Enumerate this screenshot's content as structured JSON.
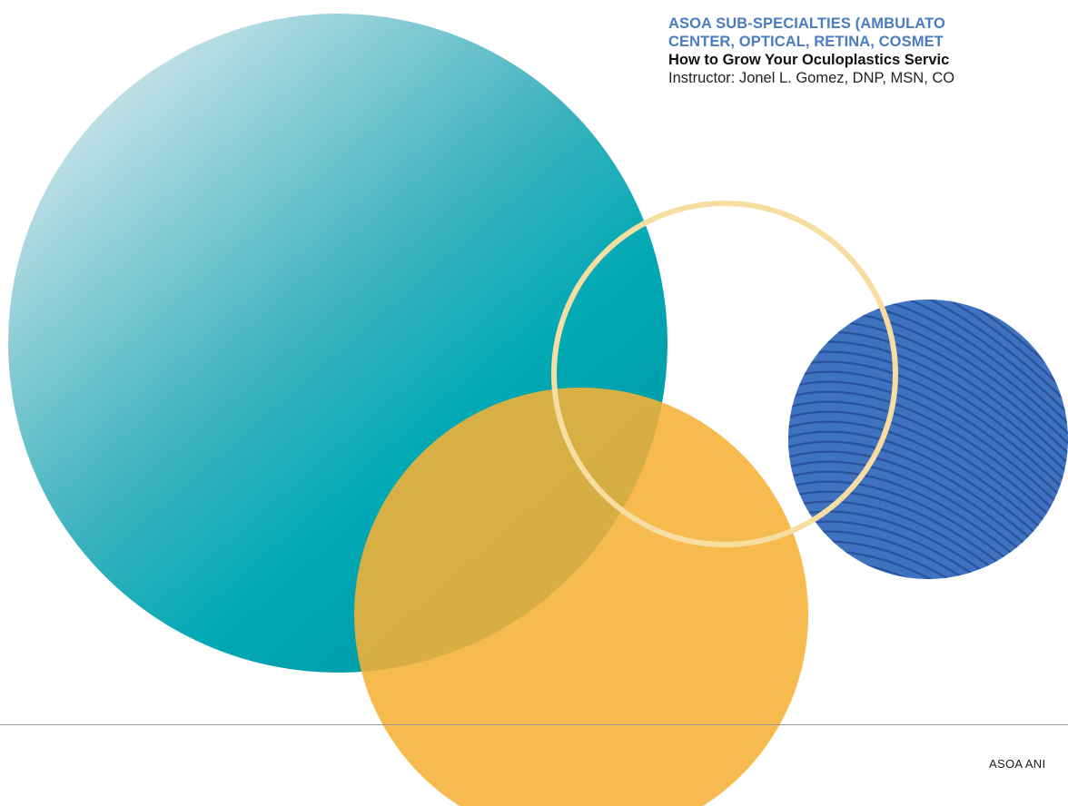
{
  "header": {
    "category_line1": "ASOA SUB-SPECIALTIES (AMBULATO",
    "category_line2": "CENTER, OPTICAL, RETINA, COSMET",
    "course_title": "How to Grow Your Oculoplastics Servic",
    "instructor": "Instructor: Jonel L. Gomez, DNP, MSN, CO"
  },
  "footer": {
    "text": "ASOA ANI"
  },
  "colors": {
    "teal_light": "#c5dfe6",
    "teal": "#00a8b5",
    "teal_dark": "#0096a3",
    "gold": "#f5b036",
    "cream_ring": "#f6dea0",
    "blue": "#3f72bf",
    "blue_stripe": "#2a539f",
    "category_blue": "#4a7cc0"
  }
}
